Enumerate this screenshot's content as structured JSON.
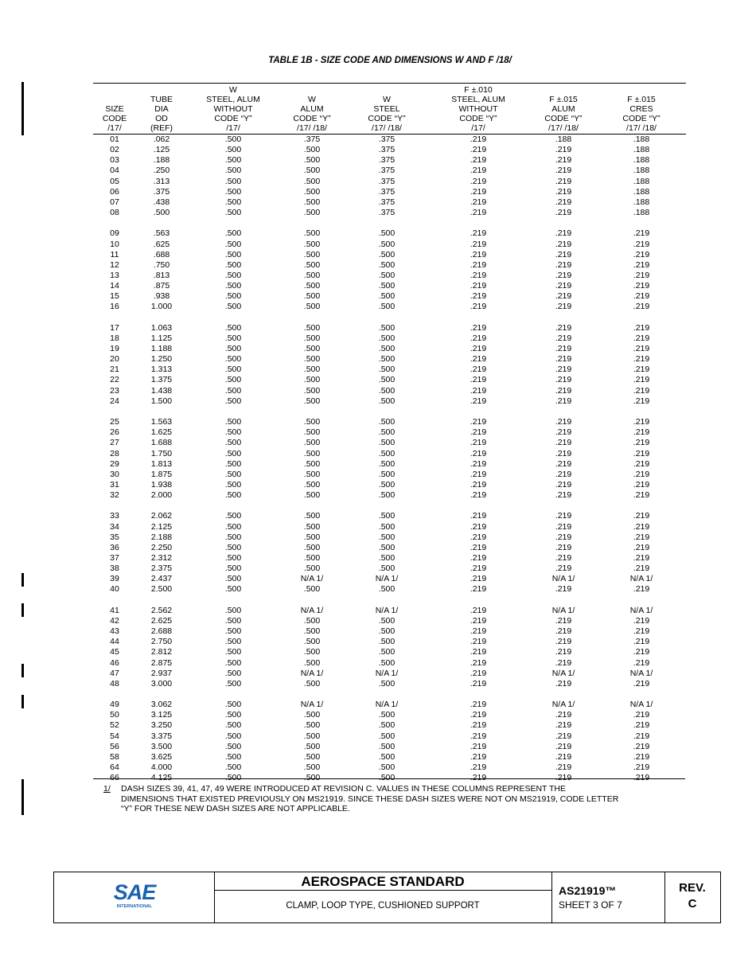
{
  "title": "TABLE 1B - SIZE CODE AND DIMENSIONS W AND F /18/",
  "table": {
    "headers": [
      [
        "SIZE",
        "CODE",
        "/17/"
      ],
      [
        "TUBE",
        "DIA",
        "OD",
        "(REF)"
      ],
      [
        "W",
        "STEEL, ALUM",
        "WITHOUT",
        "CODE “Y”",
        "/17/"
      ],
      [
        "W",
        "ALUM",
        "CODE “Y”",
        "/17/ /18/"
      ],
      [
        "W",
        "STEEL",
        "CODE “Y”",
        "/17/ /18/"
      ],
      [
        "F ±.010",
        "STEEL, ALUM",
        "WITHOUT",
        "CODE “Y”",
        "/17/"
      ],
      [
        "F ±.015",
        "ALUM",
        "CODE “Y”",
        "/17/ /18/"
      ],
      [
        "F ±.015",
        "CRES",
        "CODE “Y”",
        "/17/ /18/"
      ]
    ],
    "groups": [
      {
        "rows": [
          [
            "01",
            ".062",
            ".500",
            ".375",
            ".375",
            ".219",
            ".188",
            ".188"
          ],
          [
            "02",
            ".125",
            ".500",
            ".500",
            ".375",
            ".219",
            ".219",
            ".188"
          ],
          [
            "03",
            ".188",
            ".500",
            ".500",
            ".375",
            ".219",
            ".219",
            ".188"
          ],
          [
            "04",
            ".250",
            ".500",
            ".500",
            ".375",
            ".219",
            ".219",
            ".188"
          ],
          [
            "05",
            ".313",
            ".500",
            ".500",
            ".375",
            ".219",
            ".219",
            ".188"
          ],
          [
            "06",
            ".375",
            ".500",
            ".500",
            ".375",
            ".219",
            ".219",
            ".188"
          ],
          [
            "07",
            ".438",
            ".500",
            ".500",
            ".375",
            ".219",
            ".219",
            ".188"
          ],
          [
            "08",
            ".500",
            ".500",
            ".500",
            ".375",
            ".219",
            ".219",
            ".188"
          ]
        ]
      },
      {
        "rows": [
          [
            "09",
            ".563",
            ".500",
            ".500",
            ".500",
            ".219",
            ".219",
            ".219"
          ],
          [
            "10",
            ".625",
            ".500",
            ".500",
            ".500",
            ".219",
            ".219",
            ".219"
          ],
          [
            "11",
            ".688",
            ".500",
            ".500",
            ".500",
            ".219",
            ".219",
            ".219"
          ],
          [
            "12",
            ".750",
            ".500",
            ".500",
            ".500",
            ".219",
            ".219",
            ".219"
          ],
          [
            "13",
            ".813",
            ".500",
            ".500",
            ".500",
            ".219",
            ".219",
            ".219"
          ],
          [
            "14",
            ".875",
            ".500",
            ".500",
            ".500",
            ".219",
            ".219",
            ".219"
          ],
          [
            "15",
            ".938",
            ".500",
            ".500",
            ".500",
            ".219",
            ".219",
            ".219"
          ],
          [
            "16",
            "1.000",
            ".500",
            ".500",
            ".500",
            ".219",
            ".219",
            ".219"
          ]
        ]
      },
      {
        "rows": [
          [
            "17",
            "1.063",
            ".500",
            ".500",
            ".500",
            ".219",
            ".219",
            ".219"
          ],
          [
            "18",
            "1.125",
            ".500",
            ".500",
            ".500",
            ".219",
            ".219",
            ".219"
          ],
          [
            "19",
            "1.188",
            ".500",
            ".500",
            ".500",
            ".219",
            ".219",
            ".219"
          ],
          [
            "20",
            "1.250",
            ".500",
            ".500",
            ".500",
            ".219",
            ".219",
            ".219"
          ],
          [
            "21",
            "1.313",
            ".500",
            ".500",
            ".500",
            ".219",
            ".219",
            ".219"
          ],
          [
            "22",
            "1.375",
            ".500",
            ".500",
            ".500",
            ".219",
            ".219",
            ".219"
          ],
          [
            "23",
            "1.438",
            ".500",
            ".500",
            ".500",
            ".219",
            ".219",
            ".219"
          ],
          [
            "24",
            "1.500",
            ".500",
            ".500",
            ".500",
            ".219",
            ".219",
            ".219"
          ]
        ]
      },
      {
        "rows": [
          [
            "25",
            "1.563",
            ".500",
            ".500",
            ".500",
            ".219",
            ".219",
            ".219"
          ],
          [
            "26",
            "1.625",
            ".500",
            ".500",
            ".500",
            ".219",
            ".219",
            ".219"
          ],
          [
            "27",
            "1.688",
            ".500",
            ".500",
            ".500",
            ".219",
            ".219",
            ".219"
          ],
          [
            "28",
            "1.750",
            ".500",
            ".500",
            ".500",
            ".219",
            ".219",
            ".219"
          ],
          [
            "29",
            "1.813",
            ".500",
            ".500",
            ".500",
            ".219",
            ".219",
            ".219"
          ],
          [
            "30",
            "1.875",
            ".500",
            ".500",
            ".500",
            ".219",
            ".219",
            ".219"
          ],
          [
            "31",
            "1.938",
            ".500",
            ".500",
            ".500",
            ".219",
            ".219",
            ".219"
          ],
          [
            "32",
            "2.000",
            ".500",
            ".500",
            ".500",
            ".219",
            ".219",
            ".219"
          ]
        ]
      },
      {
        "rows": [
          [
            "33",
            "2.062",
            ".500",
            ".500",
            ".500",
            ".219",
            ".219",
            ".219"
          ],
          [
            "34",
            "2.125",
            ".500",
            ".500",
            ".500",
            ".219",
            ".219",
            ".219"
          ],
          [
            "35",
            "2.188",
            ".500",
            ".500",
            ".500",
            ".219",
            ".219",
            ".219"
          ],
          [
            "36",
            "2.250",
            ".500",
            ".500",
            ".500",
            ".219",
            ".219",
            ".219"
          ],
          [
            "37",
            "2.312",
            ".500",
            ".500",
            ".500",
            ".219",
            ".219",
            ".219"
          ],
          [
            "38",
            "2.375",
            ".500",
            ".500",
            ".500",
            ".219",
            ".219",
            ".219"
          ],
          [
            "39",
            "2.437",
            ".500",
            "N/A 1/",
            "N/A 1/",
            ".219",
            "N/A 1/",
            "N/A 1/"
          ],
          [
            "40",
            "2.500",
            ".500",
            ".500",
            ".500",
            ".219",
            ".219",
            ".219"
          ]
        ]
      },
      {
        "rows": [
          [
            "41",
            "2.562",
            ".500",
            "N/A 1/",
            "N/A 1/",
            ".219",
            "N/A 1/",
            "N/A 1/"
          ],
          [
            "42",
            "2.625",
            ".500",
            ".500",
            ".500",
            ".219",
            ".219",
            ".219"
          ],
          [
            "43",
            "2.688",
            ".500",
            ".500",
            ".500",
            ".219",
            ".219",
            ".219"
          ],
          [
            "44",
            "2.750",
            ".500",
            ".500",
            ".500",
            ".219",
            ".219",
            ".219"
          ],
          [
            "45",
            "2.812",
            ".500",
            ".500",
            ".500",
            ".219",
            ".219",
            ".219"
          ],
          [
            "46",
            "2.875",
            ".500",
            ".500",
            ".500",
            ".219",
            ".219",
            ".219"
          ],
          [
            "47",
            "2.937",
            ".500",
            "N/A 1/",
            "N/A 1/",
            ".219",
            "N/A 1/",
            "N/A 1/"
          ],
          [
            "48",
            "3.000",
            ".500",
            ".500",
            ".500",
            ".219",
            ".219",
            ".219"
          ]
        ]
      },
      {
        "rows": [
          [
            "49",
            "3.062",
            ".500",
            "N/A 1/",
            "N/A 1/",
            ".219",
            "N/A 1/",
            "N/A 1/"
          ],
          [
            "50",
            "3.125",
            ".500",
            ".500",
            ".500",
            ".219",
            ".219",
            ".219"
          ],
          [
            "52",
            "3.250",
            ".500",
            ".500",
            ".500",
            ".219",
            ".219",
            ".219"
          ],
          [
            "54",
            "3.375",
            ".500",
            ".500",
            ".500",
            ".219",
            ".219",
            ".219"
          ],
          [
            "56",
            "3.500",
            ".500",
            ".500",
            ".500",
            ".219",
            ".219",
            ".219"
          ],
          [
            "58",
            "3.625",
            ".500",
            ".500",
            ".500",
            ".219",
            ".219",
            ".219"
          ],
          [
            "64",
            "4.000",
            ".500",
            ".500",
            ".500",
            ".219",
            ".219",
            ".219"
          ],
          [
            "66",
            "4.125",
            ".500",
            ".500",
            ".500",
            ".219",
            ".219",
            ".219"
          ]
        ]
      }
    ]
  },
  "footnote": {
    "marker": "1/",
    "lines": [
      "DASH SIZES 39, 41, 47, 49 WERE INTRODUCED AT REVISION C. VALUES IN THESE COLUMNS REPRESENT THE",
      "DIMENSIONS THAT EXISTED PREVIOUSLY ON MS21919. SINCE THESE DASH SIZES WERE NOT ON MS21919, CODE LETTER",
      "“Y” FOR THESE NEW DASH SIZES ARE NOT APPLICABLE."
    ]
  },
  "footer": {
    "logo": "SAE",
    "logo_sub": "INTERNATIONAL",
    "heading": "AEROSPACE STANDARD",
    "subject": "CLAMP, LOOP TYPE, CUSHIONED SUPPORT",
    "doc_number": "AS21919™",
    "sheet": "SHEET 3 OF 7",
    "rev_label": "REV.",
    "rev": "C"
  }
}
